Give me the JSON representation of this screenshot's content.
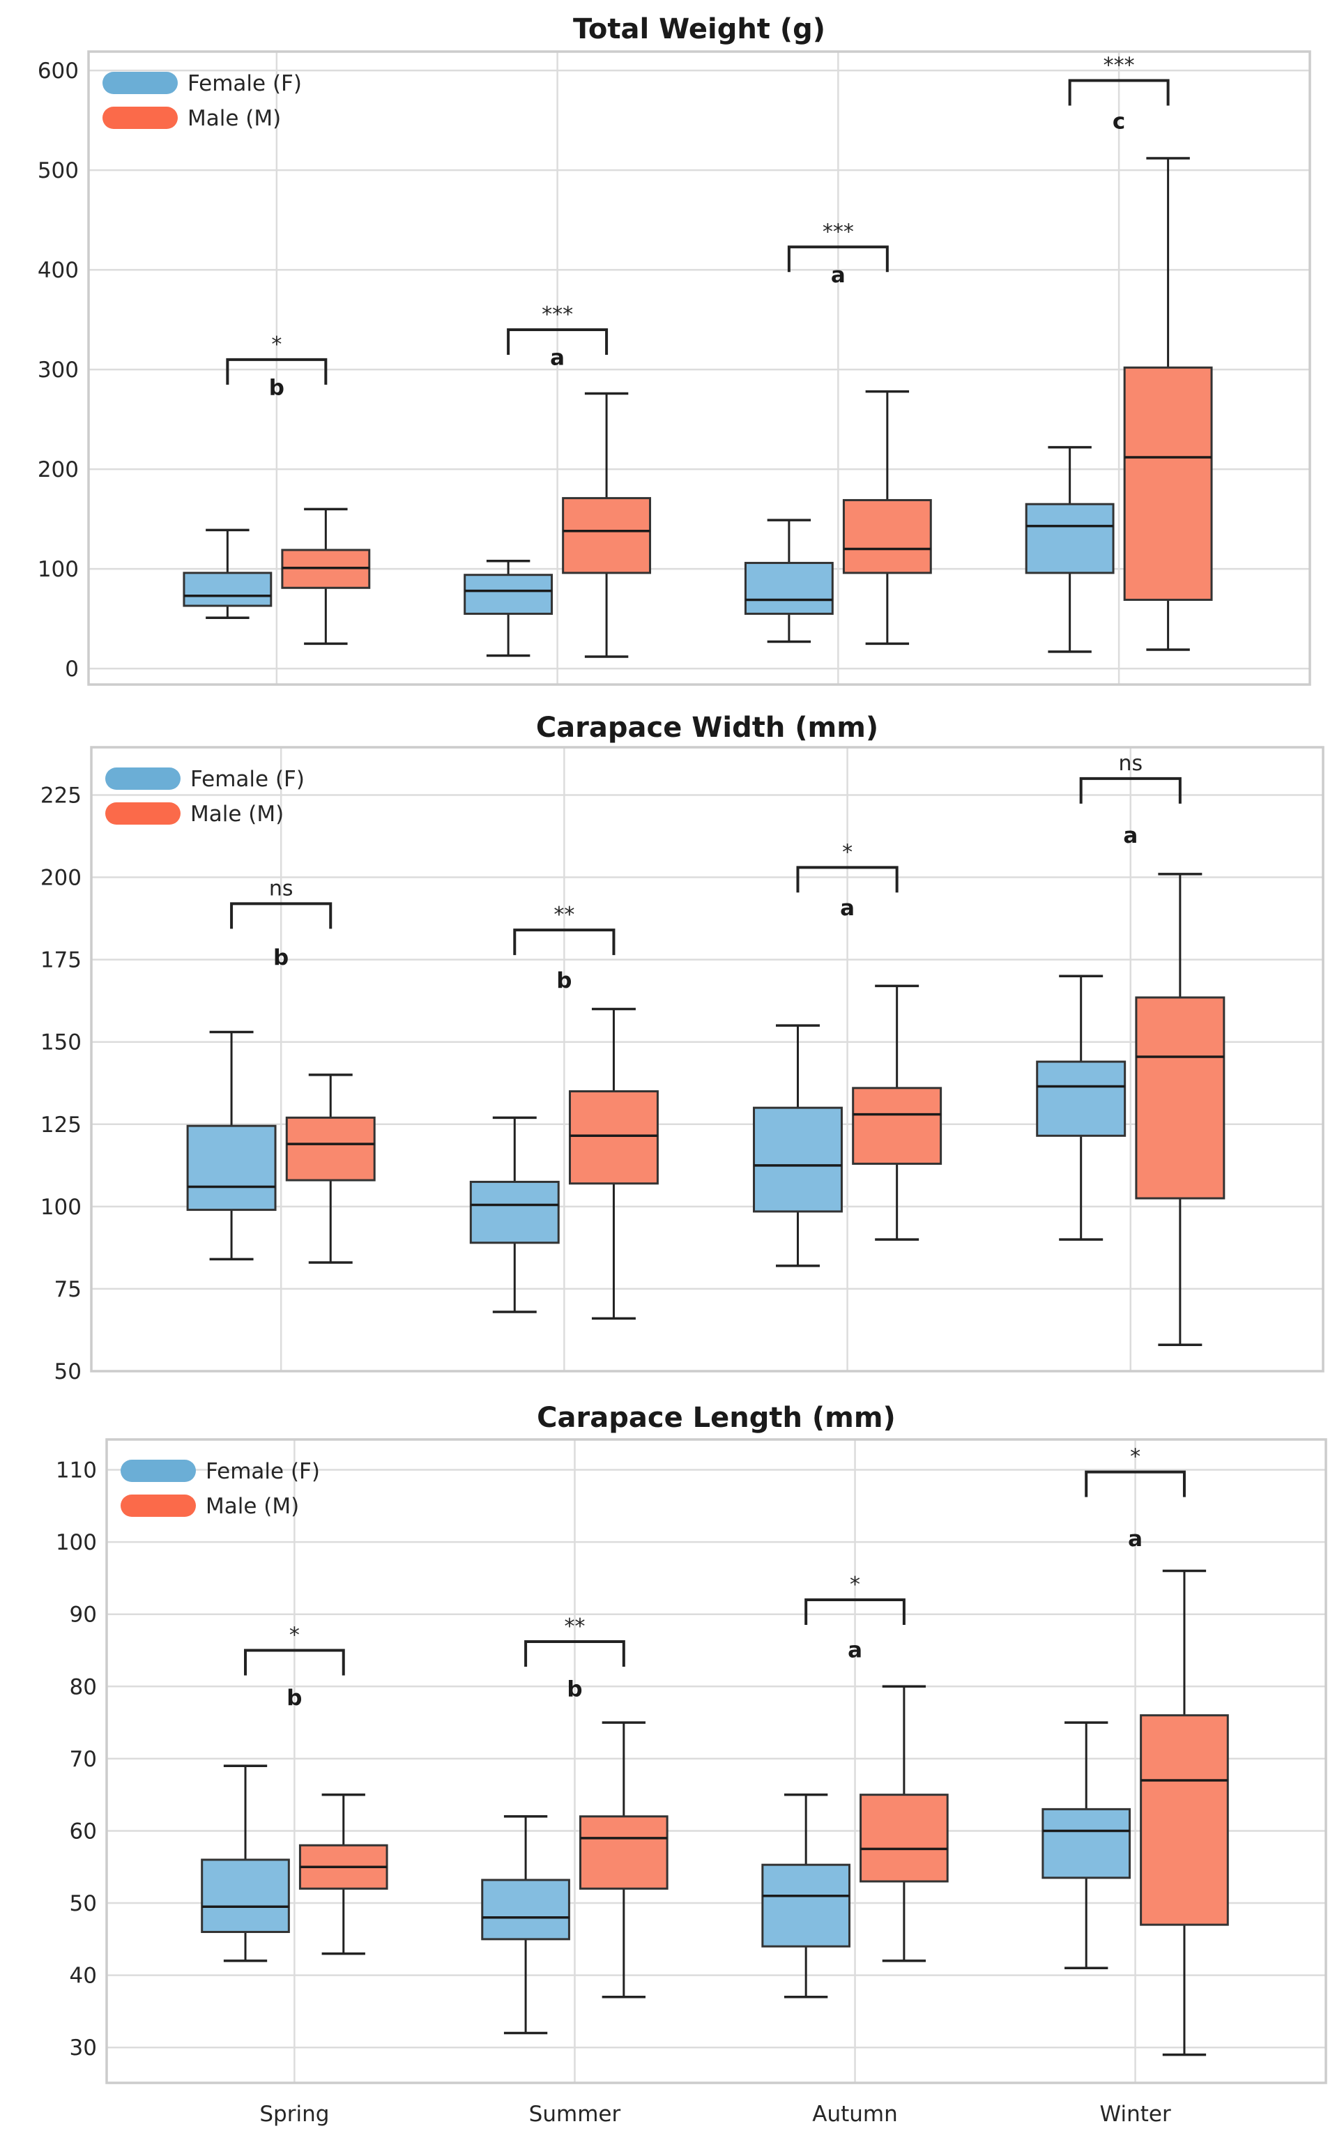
{
  "colors": {
    "female": "#6baed6",
    "male": "#fb6a4a",
    "female_fill": "#84bde0",
    "male_fill": "#f9896e",
    "grid": "#dcdcdc",
    "frame": "#cccccc",
    "line": "#222222"
  },
  "chart_data": [
    {
      "type": "box",
      "title": "Total Weight (g)",
      "categories": [
        "Spring",
        "Summer",
        "Autumn",
        "Winter"
      ],
      "show_xticklabels": false,
      "ylim": [
        -16,
        619
      ],
      "yticks": [
        0,
        100,
        200,
        300,
        400,
        500,
        600
      ],
      "grid": true,
      "legend": {
        "placement": "top-left",
        "entries": [
          "Female (F)",
          "Male (M)"
        ]
      },
      "series": [
        {
          "name": "Female (F)",
          "boxes": [
            {
              "whislo": 51,
              "q1": 63,
              "med": 73,
              "q3": 96,
              "whishi": 139
            },
            {
              "whislo": 13,
              "q1": 55,
              "med": 78,
              "q3": 94,
              "whishi": 108
            },
            {
              "whislo": 27,
              "q1": 55,
              "med": 69,
              "q3": 106,
              "whishi": 149
            },
            {
              "whislo": 17,
              "q1": 96,
              "med": 143,
              "q3": 165,
              "whishi": 222
            }
          ]
        },
        {
          "name": "Male (M)",
          "boxes": [
            {
              "whislo": 25,
              "q1": 81,
              "med": 101,
              "q3": 119,
              "whishi": 160
            },
            {
              "whislo": 12,
              "q1": 96,
              "med": 138,
              "q3": 171,
              "whishi": 276
            },
            {
              "whislo": 25,
              "q1": 96,
              "med": 120,
              "q3": 169,
              "whishi": 278
            },
            {
              "whislo": 19,
              "q1": 69,
              "med": 212,
              "q3": 302,
              "whishi": 512
            }
          ]
        }
      ],
      "annotations": [
        {
          "bracket_y": 310,
          "sig": "*",
          "letter": "b",
          "letter_y": 283
        },
        {
          "bracket_y": 340,
          "sig": "***",
          "letter": "a",
          "letter_y": 313
        },
        {
          "bracket_y": 423,
          "sig": "***",
          "letter": "a",
          "letter_y": 396
        },
        {
          "bracket_y": 590,
          "sig": "***",
          "letter": "c",
          "letter_y": 550
        }
      ]
    },
    {
      "type": "box",
      "title": "Carapace Width (mm)",
      "categories": [
        "Spring",
        "Summer",
        "Autumn",
        "Winter"
      ],
      "show_xticklabels": false,
      "ylim": [
        50,
        239.5
      ],
      "yticks": [
        50,
        75,
        100,
        125,
        150,
        175,
        200,
        225
      ],
      "grid": true,
      "legend": {
        "placement": "top-left",
        "entries": [
          "Female (F)",
          "Male (M)"
        ]
      },
      "series": [
        {
          "name": "Female (F)",
          "boxes": [
            {
              "whislo": 84,
              "q1": 99,
              "med": 106,
              "q3": 124.5,
              "whishi": 153
            },
            {
              "whislo": 68,
              "q1": 89,
              "med": 100.5,
              "q3": 107.5,
              "whishi": 127
            },
            {
              "whislo": 82,
              "q1": 98.5,
              "med": 112.5,
              "q3": 130,
              "whishi": 155
            },
            {
              "whislo": 90,
              "q1": 121.5,
              "med": 136.5,
              "q3": 144,
              "whishi": 170
            }
          ]
        },
        {
          "name": "Male (M)",
          "boxes": [
            {
              "whislo": 83,
              "q1": 108,
              "med": 119,
              "q3": 127,
              "whishi": 140
            },
            {
              "whislo": 66,
              "q1": 107,
              "med": 121.5,
              "q3": 135,
              "whishi": 160
            },
            {
              "whislo": 90,
              "q1": 113,
              "med": 128,
              "q3": 136,
              "whishi": 167
            },
            {
              "whislo": 58,
              "q1": 102.5,
              "med": 145.5,
              "q3": 163.5,
              "whishi": 201
            }
          ]
        }
      ],
      "annotations": [
        {
          "bracket_y": 192,
          "sig": "ns",
          "letter": "b",
          "letter_y": 176
        },
        {
          "bracket_y": 184,
          "sig": "**",
          "letter": "b",
          "letter_y": 169
        },
        {
          "bracket_y": 203,
          "sig": "*",
          "letter": "a",
          "letter_y": 191
        },
        {
          "bracket_y": 230,
          "sig": "ns",
          "letter": "a",
          "letter_y": 213
        }
      ]
    },
    {
      "type": "box",
      "title": "Carapace Length (mm)",
      "categories": [
        "Spring",
        "Summer",
        "Autumn",
        "Winter"
      ],
      "show_xticklabels": true,
      "ylim": [
        25.1,
        114.2
      ],
      "yticks": [
        30,
        40,
        50,
        60,
        70,
        80,
        90,
        100,
        110
      ],
      "grid": true,
      "legend": {
        "placement": "top-left",
        "entries": [
          "Female (F)",
          "Male (M)"
        ]
      },
      "series": [
        {
          "name": "Female (F)",
          "boxes": [
            {
              "whislo": 42,
              "q1": 46,
              "med": 49.5,
              "q3": 56,
              "whishi": 69
            },
            {
              "whislo": 32,
              "q1": 45,
              "med": 48,
              "q3": 53.2,
              "whishi": 62
            },
            {
              "whislo": 37,
              "q1": 44,
              "med": 51,
              "q3": 55.3,
              "whishi": 65
            },
            {
              "whislo": 41,
              "q1": 53.5,
              "med": 60,
              "q3": 63,
              "whishi": 75
            }
          ]
        },
        {
          "name": "Male (M)",
          "boxes": [
            {
              "whislo": 43,
              "q1": 52,
              "med": 55,
              "q3": 58,
              "whishi": 65
            },
            {
              "whislo": 37,
              "q1": 52,
              "med": 59,
              "q3": 62,
              "whishi": 75
            },
            {
              "whislo": 42,
              "q1": 53,
              "med": 57.5,
              "q3": 65,
              "whishi": 80
            },
            {
              "whislo": 29,
              "q1": 47,
              "med": 67,
              "q3": 76,
              "whishi": 96
            }
          ]
        }
      ],
      "annotations": [
        {
          "bracket_y": 85,
          "sig": "*",
          "letter": "b",
          "letter_y": 78.6
        },
        {
          "bracket_y": 86.2,
          "sig": "**",
          "letter": "b",
          "letter_y": 79.8
        },
        {
          "bracket_y": 92,
          "sig": "*",
          "letter": "a",
          "letter_y": 85.2
        },
        {
          "bracket_y": 109.7,
          "sig": "*",
          "letter": "a",
          "letter_y": 100.6
        }
      ]
    }
  ]
}
